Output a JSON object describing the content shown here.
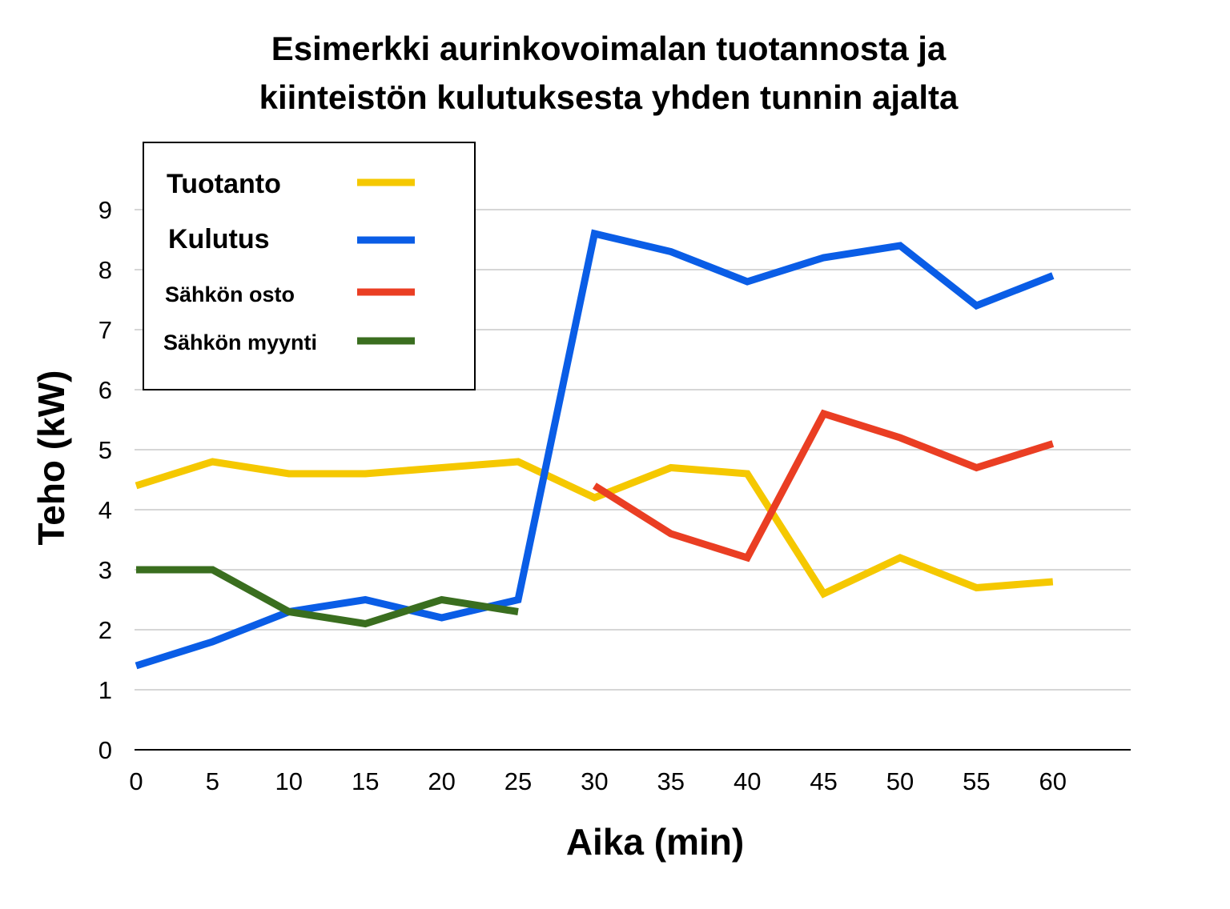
{
  "chart_data": {
    "type": "line",
    "title_lines": [
      "Esimerkki aurinkovoimalan tuotannosta ja",
      "kiinteistön kulutuksesta yhden tunnin ajalta"
    ],
    "xlabel": "Aika (min)",
    "ylabel": "Teho (kW)",
    "x": [
      0,
      5,
      10,
      15,
      20,
      25,
      30,
      35,
      40,
      45,
      50,
      55,
      60
    ],
    "xlim": [
      0,
      65
    ],
    "ylim": [
      0,
      9
    ],
    "yticks": [
      0,
      1,
      2,
      3,
      4,
      5,
      6,
      7,
      8,
      9
    ],
    "grid": true,
    "legend_position": "top-left",
    "series": [
      {
        "name": "Tuotanto",
        "color": "#f5c800",
        "values": [
          4.4,
          4.8,
          4.6,
          4.6,
          4.7,
          4.8,
          4.2,
          4.7,
          4.6,
          2.6,
          3.2,
          2.7,
          2.8
        ]
      },
      {
        "name": "Kulutus",
        "color": "#0a5de6",
        "values": [
          1.4,
          1.8,
          2.3,
          2.5,
          2.2,
          2.5,
          8.6,
          8.3,
          7.8,
          8.2,
          8.4,
          7.4,
          7.9
        ]
      },
      {
        "name": "Sähkön osto",
        "color": "#ea3e23",
        "values": [
          null,
          null,
          null,
          null,
          null,
          null,
          4.4,
          3.6,
          3.2,
          5.6,
          5.2,
          4.7,
          5.1
        ]
      },
      {
        "name": "Sähkön myynti",
        "color": "#3a6e1f",
        "values": [
          3.0,
          3.0,
          2.3,
          2.1,
          2.5,
          2.3,
          null,
          null,
          null,
          null,
          null,
          null,
          null
        ]
      }
    ]
  }
}
